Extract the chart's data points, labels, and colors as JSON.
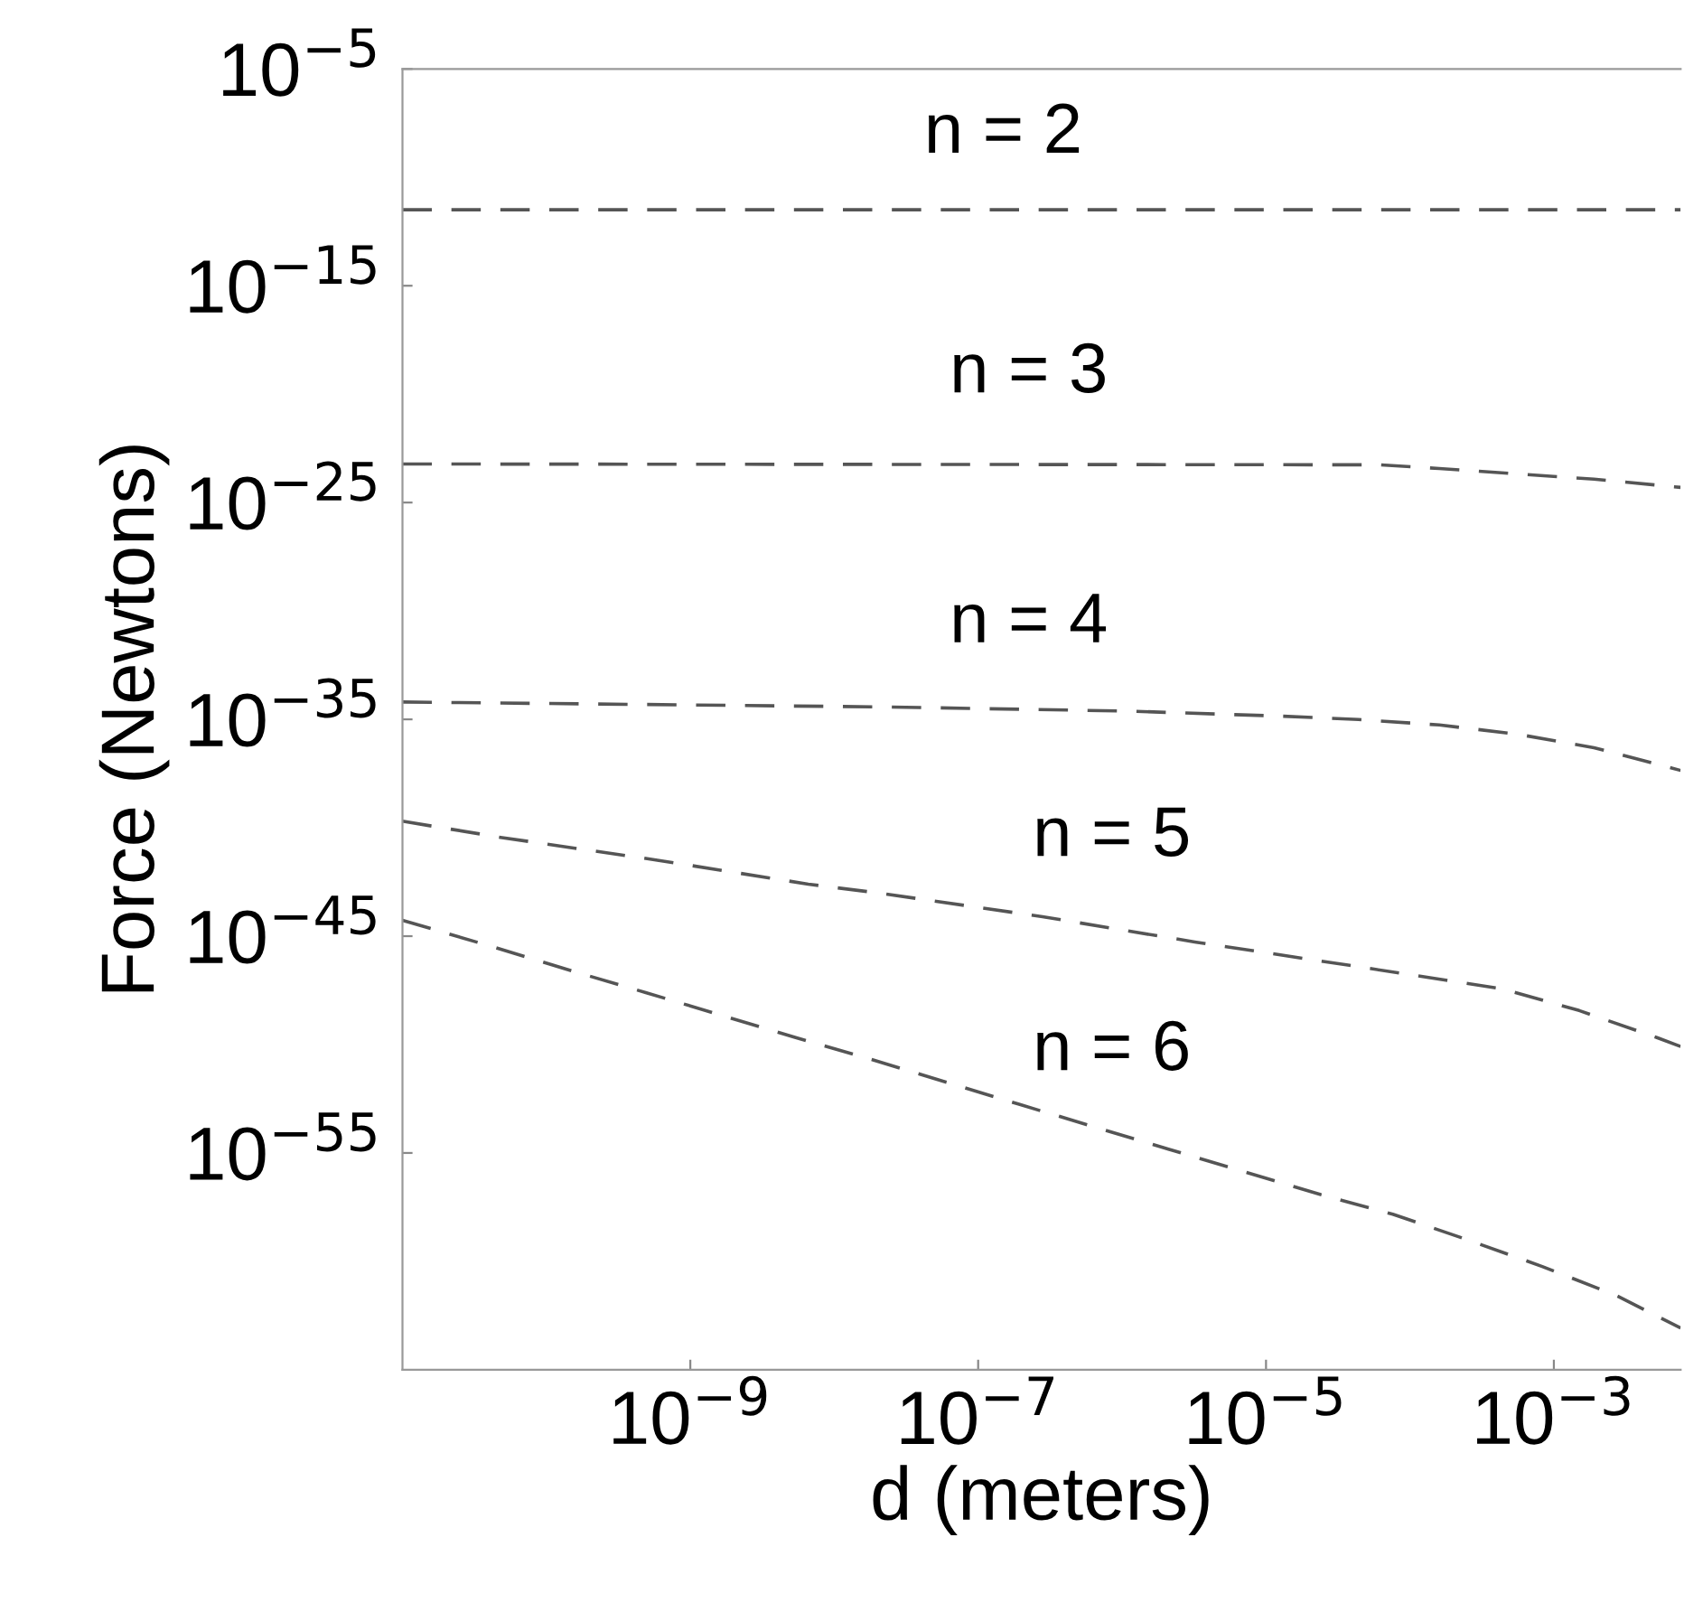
{
  "chart_data": {
    "type": "line",
    "xlabel": "d (meters)",
    "ylabel": "Force (Newtons)",
    "log": "xy",
    "line_style": "dashed",
    "xlim": [
      1e-11,
      0.0076
    ],
    "ylim": [
      1e-65,
      1e-05
    ],
    "xticks": [
      {
        "value": 1e-09,
        "label": "10$^{−9}$"
      },
      {
        "value": 1e-07,
        "label": "10$^{−7}$"
      },
      {
        "value": 1e-05,
        "label": "10$^{−5}$"
      },
      {
        "value": 0.001,
        "label": "10$^{−3}$"
      }
    ],
    "yticks": [
      {
        "value": 1e-05,
        "label": "10$^{−5}$"
      },
      {
        "value": 1e-15,
        "label": "10$^{−15}$"
      },
      {
        "value": 1e-25,
        "label": "10$^{−25}$"
      },
      {
        "value": 1e-35,
        "label": "10$^{−35}$"
      },
      {
        "value": 1e-45,
        "label": "10$^{−45}$"
      },
      {
        "value": 1e-55,
        "label": "10$^{−55}$"
      }
    ],
    "series": [
      {
        "name": "n = 2",
        "color": "#555555",
        "x": [
          1e-11,
          0.0076
        ],
        "values": [
          3.2e-12,
          3.2e-12
        ]
      },
      {
        "name": "n = 3",
        "color": "#555555",
        "x": [
          1e-11,
          6.2e-05,
          0.00016,
          0.00055,
          0.0019,
          0.0076
        ],
        "values": [
          6e-24,
          5.5e-24,
          3.7e-24,
          2.1e-24,
          1.2e-24,
          5e-25
        ]
      },
      {
        "name": "n = 4",
        "color": "#555555",
        "x": [
          1e-11,
          2.5e-08,
          1.1e-06,
          1.3e-05,
          4.4e-05,
          0.00016,
          0.00055,
          0.0019,
          0.0076
        ],
        "values": [
          6.3e-35,
          3.7e-35,
          2.4e-35,
          1.4e-35,
          9.8e-36,
          5.5e-36,
          2.1e-36,
          4.9e-37,
          4.4e-38
        ]
      },
      {
        "name": "n = 5",
        "color": "#555555",
        "x": [
          1e-11,
          4.8e-11,
          5.9e-10,
          6.6e-09,
          2.1e-08,
          2.8e-07,
          3.2e-06,
          3.8e-05,
          0.00044,
          0.0015,
          0.0052,
          0.0076
        ],
        "values": [
          2e-40,
          3.6e-41,
          3.2e-42,
          2.5e-43,
          9.5e-44,
          7.9e-45,
          5.4e-46,
          4.5e-47,
          3.7e-48,
          3.7e-49,
          2.1e-50,
          8.1e-51
        ]
      },
      {
        "name": "n = 6",
        "color": "#555555",
        "x": [
          1e-11,
          4.4e-11,
          1.5e-10,
          4.9e-10,
          1.7e-09,
          5.4e-09,
          1.8e-08,
          1.9e-07,
          2.1e-06,
          2.4e-05,
          7.6e-05,
          0.00025,
          0.00083,
          0.0027,
          0.0076
        ],
        "values": [
          5.4e-45,
          3e-46,
          2.5e-47,
          2.5e-48,
          2.1e-49,
          2.1e-50,
          2.1e-51,
          1.8e-53,
          1.5e-55,
          1.2e-57,
          1.5e-58,
          1e-59,
          5.8e-61,
          2.7e-62,
          8.5e-64
        ]
      }
    ]
  }
}
